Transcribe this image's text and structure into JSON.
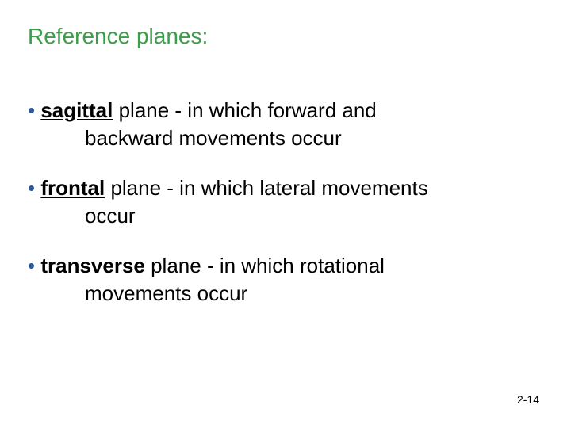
{
  "title": "Reference planes:",
  "title_color": "#3c9d4a",
  "title_fontsize": 28,
  "body_fontsize": 26,
  "bullet_color": "#2e5a9c",
  "text_color": "#000000",
  "background_color": "#ffffff",
  "bullets": [
    {
      "line1_prefix": "• ",
      "term": "sagittal",
      "after_term": " plane - in which forward and",
      "line2": "backward movements occur"
    },
    {
      "line1_prefix": "• ",
      "term": "frontal",
      "after_term": " plane - in which lateral movements",
      "line2": "occur"
    },
    {
      "line1_prefix": "• ",
      "term": "transverse",
      "after_term": " plane - in which rotational",
      "line2": "movements occur"
    }
  ],
  "page_number": "2-14",
  "page_number_fontsize": 14
}
